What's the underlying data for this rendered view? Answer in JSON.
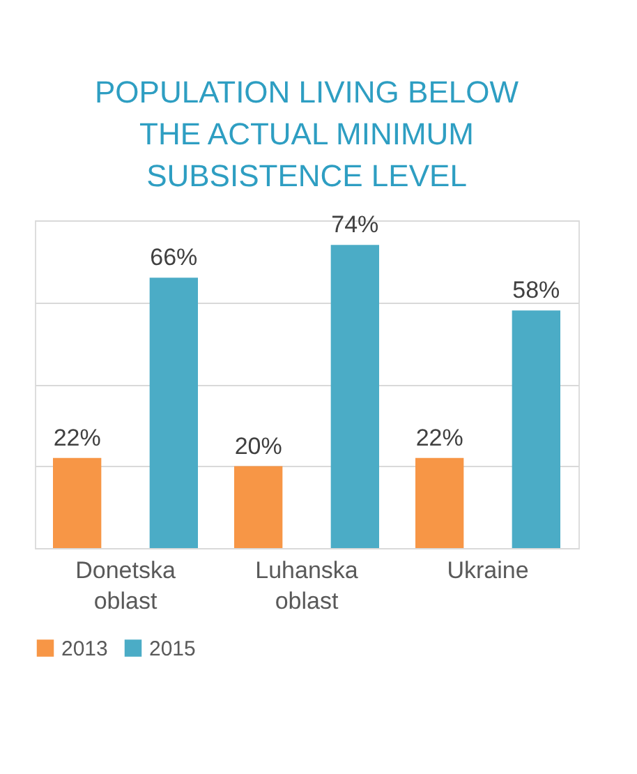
{
  "chart_data": {
    "type": "bar",
    "title": "POPULATION LIVING BELOW THE ACTUAL MINIMUM SUBSISTENCE LEVEL",
    "categories": [
      "Donetska oblast",
      "Luhanska oblast",
      "Ukraine"
    ],
    "series": [
      {
        "name": "2013",
        "color": "#f79646",
        "values": [
          22,
          20,
          22
        ],
        "value_labels": [
          "22%",
          "20%",
          "22%"
        ]
      },
      {
        "name": "2015",
        "color": "#4bacc6",
        "values": [
          66,
          74,
          58
        ],
        "value_labels": [
          "66%",
          "74%",
          "58%"
        ]
      }
    ],
    "grid": "y",
    "tick_labels": "x",
    "legend": "bottom"
  }
}
